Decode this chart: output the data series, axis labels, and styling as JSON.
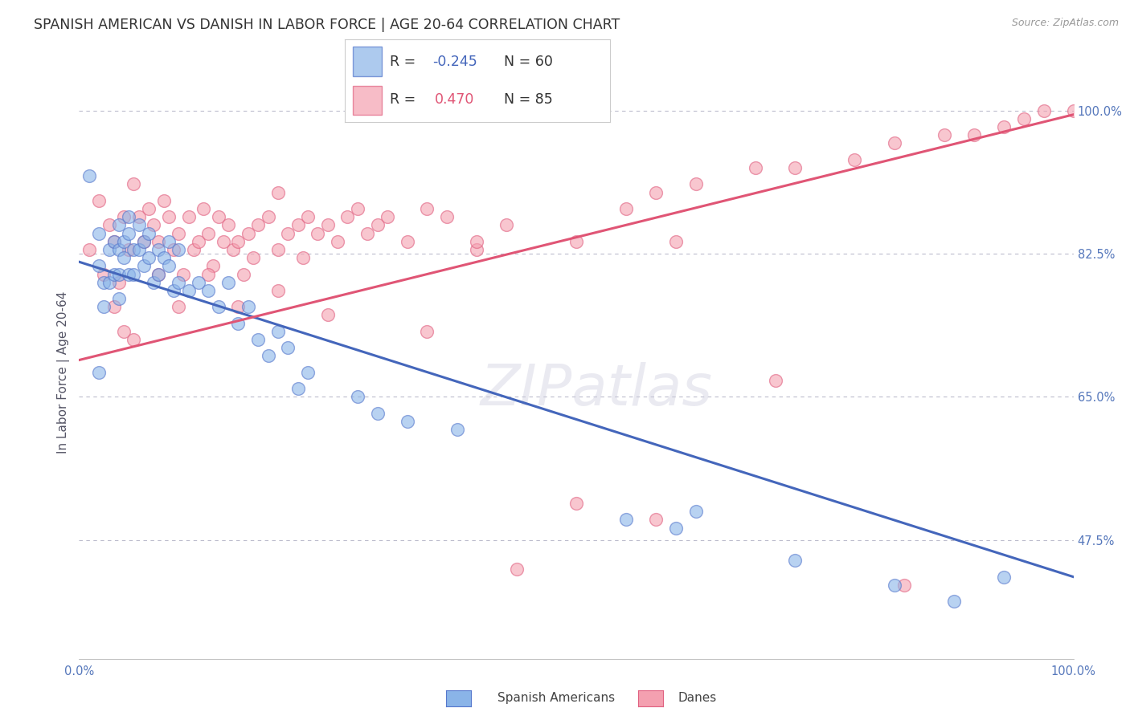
{
  "title": "SPANISH AMERICAN VS DANISH IN LABOR FORCE | AGE 20-64 CORRELATION CHART",
  "source": "Source: ZipAtlas.com",
  "ylabel": "In Labor Force | Age 20-64",
  "xlim": [
    0.0,
    1.0
  ],
  "ylim": [
    0.33,
    1.03
  ],
  "background_color": "#ffffff",
  "grid_color": "#bbbbcc",
  "blue_color": "#8ab4e8",
  "pink_color": "#f4a0b0",
  "blue_edge_color": "#5577cc",
  "pink_edge_color": "#e06080",
  "blue_line_color": "#4466bb",
  "pink_line_color": "#e05575",
  "r_blue": -0.245,
  "r_pink": 0.47,
  "n_blue": 60,
  "n_pink": 85,
  "title_fontsize": 12.5,
  "axis_label_fontsize": 11,
  "tick_fontsize": 10.5,
  "ytick_positions": [
    0.475,
    0.65,
    0.825,
    1.0
  ],
  "ytick_labels": [
    "47.5%",
    "65.0%",
    "82.5%",
    "100.0%"
  ],
  "blue_line_x0": 0.0,
  "blue_line_y0": 0.815,
  "blue_line_x1": 1.0,
  "blue_line_y1": 0.43,
  "pink_line_x0": 0.0,
  "pink_line_y0": 0.695,
  "pink_line_x1": 1.0,
  "pink_line_y1": 0.995,
  "blue_scatter_x": [
    0.01,
    0.02,
    0.02,
    0.025,
    0.025,
    0.03,
    0.03,
    0.035,
    0.035,
    0.04,
    0.04,
    0.04,
    0.04,
    0.045,
    0.045,
    0.05,
    0.05,
    0.05,
    0.055,
    0.055,
    0.06,
    0.06,
    0.065,
    0.065,
    0.07,
    0.07,
    0.075,
    0.08,
    0.08,
    0.085,
    0.09,
    0.09,
    0.095,
    0.1,
    0.1,
    0.11,
    0.12,
    0.13,
    0.14,
    0.15,
    0.16,
    0.17,
    0.18,
    0.19,
    0.2,
    0.21,
    0.22,
    0.23,
    0.28,
    0.3,
    0.33,
    0.38,
    0.55,
    0.6,
    0.62,
    0.72,
    0.82,
    0.88,
    0.93,
    0.02
  ],
  "blue_scatter_y": [
    0.92,
    0.85,
    0.81,
    0.79,
    0.76,
    0.83,
    0.79,
    0.84,
    0.8,
    0.86,
    0.83,
    0.8,
    0.77,
    0.84,
    0.82,
    0.87,
    0.85,
    0.8,
    0.83,
    0.8,
    0.86,
    0.83,
    0.84,
    0.81,
    0.85,
    0.82,
    0.79,
    0.83,
    0.8,
    0.82,
    0.84,
    0.81,
    0.78,
    0.83,
    0.79,
    0.78,
    0.79,
    0.78,
    0.76,
    0.79,
    0.74,
    0.76,
    0.72,
    0.7,
    0.73,
    0.71,
    0.66,
    0.68,
    0.65,
    0.63,
    0.62,
    0.61,
    0.5,
    0.49,
    0.51,
    0.45,
    0.42,
    0.4,
    0.43,
    0.68
  ],
  "pink_scatter_x": [
    0.01,
    0.02,
    0.03,
    0.035,
    0.04,
    0.045,
    0.05,
    0.055,
    0.06,
    0.065,
    0.07,
    0.075,
    0.08,
    0.085,
    0.09,
    0.095,
    0.1,
    0.105,
    0.11,
    0.115,
    0.12,
    0.125,
    0.13,
    0.135,
    0.14,
    0.145,
    0.15,
    0.155,
    0.16,
    0.165,
    0.17,
    0.175,
    0.18,
    0.19,
    0.2,
    0.21,
    0.22,
    0.225,
    0.23,
    0.24,
    0.25,
    0.26,
    0.27,
    0.28,
    0.29,
    0.3,
    0.31,
    0.33,
    0.35,
    0.37,
    0.4,
    0.43,
    0.5,
    0.55,
    0.58,
    0.62,
    0.68,
    0.72,
    0.78,
    0.82,
    0.87,
    0.9,
    0.93,
    0.95,
    0.97,
    0.025,
    0.035,
    0.045,
    0.055,
    0.08,
    0.1,
    0.13,
    0.16,
    0.2,
    0.25,
    0.35,
    0.44,
    0.5,
    0.58,
    0.7,
    0.83,
    0.2,
    0.4,
    0.6,
    1.0
  ],
  "pink_scatter_y": [
    0.83,
    0.89,
    0.86,
    0.84,
    0.79,
    0.87,
    0.83,
    0.91,
    0.87,
    0.84,
    0.88,
    0.86,
    0.84,
    0.89,
    0.87,
    0.83,
    0.85,
    0.8,
    0.87,
    0.83,
    0.84,
    0.88,
    0.85,
    0.81,
    0.87,
    0.84,
    0.86,
    0.83,
    0.84,
    0.8,
    0.85,
    0.82,
    0.86,
    0.87,
    0.83,
    0.85,
    0.86,
    0.82,
    0.87,
    0.85,
    0.86,
    0.84,
    0.87,
    0.88,
    0.85,
    0.86,
    0.87,
    0.84,
    0.88,
    0.87,
    0.83,
    0.86,
    0.84,
    0.88,
    0.9,
    0.91,
    0.93,
    0.93,
    0.94,
    0.96,
    0.97,
    0.97,
    0.98,
    0.99,
    1.0,
    0.8,
    0.76,
    0.73,
    0.72,
    0.8,
    0.76,
    0.8,
    0.76,
    0.78,
    0.75,
    0.73,
    0.44,
    0.52,
    0.5,
    0.67,
    0.42,
    0.9,
    0.84,
    0.84,
    1.0
  ]
}
